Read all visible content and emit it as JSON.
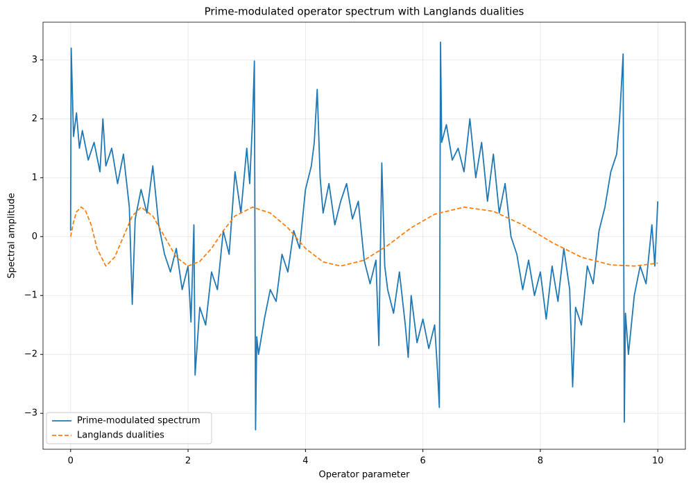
{
  "chart_data": {
    "type": "line",
    "title": "Prime-modulated operator spectrum with Langlands dualities",
    "x_label": "Operator parameter",
    "y_label": "Spectral amplitude",
    "xlim": [
      -0.47,
      10.47
    ],
    "ylim": [
      -3.61,
      3.64
    ],
    "xticks": [
      0,
      2,
      4,
      6,
      8,
      10
    ],
    "yticks": [
      {
        "value": -3,
        "label": "−3"
      },
      {
        "value": -2,
        "label": "−2"
      },
      {
        "value": -1,
        "label": "−1"
      },
      0,
      1,
      2,
      3
    ],
    "grid": true,
    "legend": "lower left",
    "series": [
      {
        "name": "Prime-modulated spectrum",
        "color": "#1f77b4",
        "dash": "solid",
        "x": [
          0,
          0.01,
          0.05,
          0.1,
          0.15,
          0.2,
          0.3,
          0.4,
          0.5,
          0.55,
          0.6,
          0.7,
          0.8,
          0.9,
          1.0,
          1.05,
          1.1,
          1.2,
          1.3,
          1.4,
          1.5,
          1.6,
          1.7,
          1.8,
          1.9,
          2.0,
          2.05,
          2.1,
          2.12,
          2.2,
          2.3,
          2.4,
          2.5,
          2.6,
          2.7,
          2.8,
          2.9,
          3.0,
          3.05,
          3.1,
          3.13,
          3.15,
          3.17,
          3.2,
          3.3,
          3.4,
          3.5,
          3.6,
          3.7,
          3.8,
          3.9,
          4.0,
          4.1,
          4.15,
          4.2,
          4.25,
          4.3,
          4.4,
          4.5,
          4.6,
          4.7,
          4.8,
          4.9,
          5.0,
          5.1,
          5.2,
          5.25,
          5.3,
          5.35,
          5.4,
          5.5,
          5.6,
          5.7,
          5.75,
          5.8,
          5.9,
          6.0,
          6.1,
          6.2,
          6.25,
          6.28,
          6.3,
          6.32,
          6.4,
          6.5,
          6.6,
          6.7,
          6.8,
          6.9,
          7.0,
          7.1,
          7.2,
          7.3,
          7.4,
          7.5,
          7.6,
          7.7,
          7.8,
          7.9,
          8.0,
          8.1,
          8.2,
          8.3,
          8.4,
          8.5,
          8.55,
          8.6,
          8.7,
          8.8,
          8.9,
          9.0,
          9.1,
          9.2,
          9.3,
          9.35,
          9.41,
          9.43,
          9.45,
          9.5,
          9.6,
          9.7,
          9.8,
          9.9,
          9.95,
          10.0
        ],
        "values": [
          0.1,
          3.2,
          1.7,
          2.1,
          1.5,
          1.8,
          1.3,
          1.6,
          1.1,
          2.0,
          1.2,
          1.5,
          0.9,
          1.4,
          0.5,
          -1.15,
          0.3,
          0.8,
          0.4,
          1.2,
          0.2,
          -0.3,
          -0.6,
          -0.2,
          -0.9,
          -0.5,
          -1.45,
          0.2,
          -2.35,
          -1.2,
          -1.5,
          -0.6,
          -0.9,
          0.1,
          -0.3,
          1.1,
          0.4,
          1.5,
          0.9,
          2.0,
          2.98,
          -3.28,
          -1.7,
          -2.0,
          -1.4,
          -0.9,
          -1.1,
          -0.3,
          -0.6,
          0.1,
          -0.2,
          0.8,
          1.2,
          1.6,
          2.5,
          1.0,
          0.4,
          0.9,
          0.2,
          0.6,
          0.9,
          0.3,
          0.6,
          -0.4,
          -0.8,
          -0.4,
          -1.85,
          1.25,
          -0.5,
          -0.9,
          -1.3,
          -0.6,
          -1.5,
          -2.05,
          -1.0,
          -1.8,
          -1.4,
          -1.9,
          -1.5,
          -2.3,
          -2.9,
          3.3,
          1.6,
          1.9,
          1.3,
          1.5,
          1.1,
          2.0,
          1.0,
          1.6,
          0.6,
          1.4,
          0.4,
          0.9,
          0.0,
          -0.3,
          -0.9,
          -0.4,
          -1.0,
          -0.6,
          -1.4,
          -0.5,
          -1.1,
          -0.2,
          -0.9,
          -2.55,
          -1.2,
          -1.5,
          -0.5,
          -0.8,
          0.1,
          0.5,
          1.1,
          1.4,
          2.0,
          3.1,
          -3.15,
          -1.3,
          -2.0,
          -1.0,
          -0.5,
          -0.8,
          0.2,
          -0.5,
          0.6
        ]
      },
      {
        "name": "Langlands dualities",
        "color": "#ff7f0e",
        "dash": "dashed",
        "x": [
          0,
          0.05,
          0.1,
          0.18,
          0.25,
          0.35,
          0.45,
          0.6,
          0.75,
          0.9,
          1.05,
          1.2,
          1.4,
          1.6,
          1.8,
          2.0,
          2.2,
          2.4,
          2.6,
          2.8,
          3.1,
          3.4,
          3.7,
          4.0,
          4.3,
          4.6,
          5.0,
          5.4,
          5.8,
          6.2,
          6.7,
          7.2,
          7.7,
          8.2,
          8.7,
          9.2,
          9.6,
          10.0
        ],
        "values": [
          0,
          0.25,
          0.42,
          0.5,
          0.45,
          0.2,
          -0.2,
          -0.5,
          -0.35,
          0.0,
          0.35,
          0.5,
          0.35,
          0.0,
          -0.35,
          -0.5,
          -0.42,
          -0.2,
          0.1,
          0.35,
          0.5,
          0.4,
          0.15,
          -0.2,
          -0.43,
          -0.5,
          -0.4,
          -0.15,
          0.15,
          0.38,
          0.5,
          0.43,
          0.2,
          -0.1,
          -0.35,
          -0.48,
          -0.5,
          -0.45
        ]
      }
    ]
  }
}
